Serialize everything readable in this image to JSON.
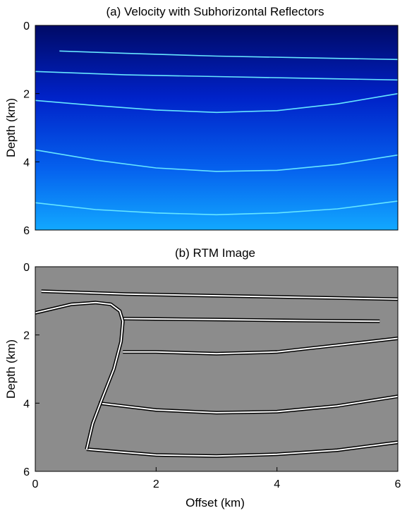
{
  "chart_data": [
    {
      "type": "heatmap",
      "title": "(a) Velocity with Subhorizontal Reflectors",
      "ylabel": "Depth (km)",
      "xlabel": "",
      "ylim": [
        6,
        0
      ],
      "xlim": [
        0,
        6
      ],
      "yticks": [
        "0",
        "2",
        "4",
        "6"
      ],
      "xticks": [],
      "colormap": {
        "shallow": "#000a66",
        "deep": "#12a8ff",
        "reflector": "#66e6ff"
      },
      "reflectors": [
        {
          "name": "r1",
          "x": [
            0.4,
            1.5,
            3,
            4.5,
            6.0
          ],
          "depth": [
            0.75,
            0.82,
            0.9,
            0.95,
            1.0
          ]
        },
        {
          "name": "r2",
          "x": [
            0,
            1.5,
            3,
            4.5,
            6
          ],
          "depth": [
            1.35,
            1.45,
            1.5,
            1.55,
            1.6
          ]
        },
        {
          "name": "r3",
          "x": [
            0,
            1,
            2,
            3,
            4,
            5,
            6
          ],
          "depth": [
            2.2,
            2.35,
            2.48,
            2.55,
            2.5,
            2.3,
            2.0
          ]
        },
        {
          "name": "r4",
          "x": [
            0,
            1,
            2,
            3,
            4,
            5,
            6
          ],
          "depth": [
            3.65,
            3.95,
            4.18,
            4.28,
            4.25,
            4.08,
            3.8
          ]
        },
        {
          "name": "r5",
          "x": [
            0,
            1,
            2,
            3,
            4,
            5,
            6
          ],
          "depth": [
            5.2,
            5.4,
            5.5,
            5.55,
            5.5,
            5.38,
            5.15
          ]
        }
      ]
    },
    {
      "type": "heatmap",
      "title": "(b) RTM Image",
      "ylabel": "Depth (km)",
      "xlabel": "Offset (km)",
      "ylim": [
        6,
        0
      ],
      "xlim": [
        0,
        6
      ],
      "yticks": [
        "0",
        "2",
        "4",
        "6"
      ],
      "xticks": [
        "0",
        "2",
        "4",
        "6"
      ],
      "colormap": {
        "background": "#8c8c8c",
        "positive": "#ffffff",
        "negative": "#000000"
      },
      "events": [
        {
          "name": "e1",
          "x": [
            0.1,
            1.5,
            3,
            4.5,
            6.0
          ],
          "depth": [
            0.72,
            0.8,
            0.85,
            0.9,
            0.95
          ]
        },
        {
          "name": "e2",
          "x": [
            1.45,
            3,
            4.5,
            5.7
          ],
          "depth": [
            1.52,
            1.55,
            1.58,
            1.6
          ]
        },
        {
          "name": "e3",
          "x": [
            1.45,
            2,
            3,
            4,
            5,
            6
          ],
          "depth": [
            2.5,
            2.5,
            2.55,
            2.5,
            2.3,
            2.1
          ]
        },
        {
          "name": "e4",
          "x": [
            1.05,
            2,
            3,
            4,
            5,
            6
          ],
          "depth": [
            4.0,
            4.2,
            4.28,
            4.25,
            4.08,
            3.8
          ]
        },
        {
          "name": "e5",
          "x": [
            0.85,
            2,
            3,
            4,
            5,
            6
          ],
          "depth": [
            5.35,
            5.52,
            5.55,
            5.5,
            5.38,
            5.15
          ]
        },
        {
          "name": "diffraction",
          "x": [
            0.0,
            0.6,
            1.0,
            1.25,
            1.4,
            1.45,
            1.42,
            1.3,
            1.1,
            0.95,
            0.85
          ],
          "depth": [
            1.35,
            1.1,
            1.05,
            1.1,
            1.3,
            1.6,
            2.2,
            3.0,
            3.9,
            4.6,
            5.35
          ]
        }
      ]
    }
  ]
}
